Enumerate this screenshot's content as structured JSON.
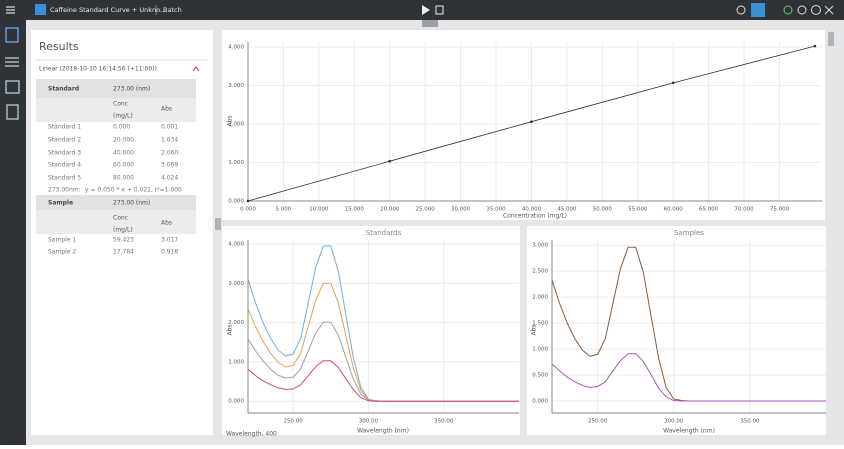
{
  "header": {
    "title": "Caffeine Standard Curve + Unkno...",
    "tab": "Batch"
  },
  "results": {
    "title": "Results",
    "method": "Linear (2018-10-10 16:14:56 (+11:00))",
    "standards": {
      "heading": [
        "Standard",
        "273.00 (nm)"
      ],
      "conc_label": [
        "Conc",
        "(mg/L)"
      ],
      "abs_label": "Abs",
      "rows": [
        [
          "Standard 1",
          "0.000",
          "0.001"
        ],
        [
          "Standard 2",
          "20.000",
          "1.034"
        ],
        [
          "Standard 3",
          "40.000",
          "2.060"
        ],
        [
          "Standard 4",
          "60.000",
          "3.069"
        ],
        [
          "Standard 5",
          "80.000",
          "4.024"
        ]
      ],
      "equation": [
        "273.00nm:",
        "y = 0.050 * x + 0.021, r²=1.000"
      ]
    },
    "samples": {
      "heading": [
        "Sample",
        "273.00 (nm)"
      ],
      "conc_label": [
        "Conc",
        "(mg/L)"
      ],
      "abs_label": "Abs",
      "rows": [
        [
          "Sample 1",
          "59.423",
          "3.017"
        ],
        [
          "Sample 2",
          "17.784",
          "0.918"
        ]
      ]
    }
  },
  "status": "Wavelength, 400",
  "chart_data": [
    {
      "type": "line",
      "markers": true,
      "x_label": "Concentration (mg/L)",
      "y_label": "Abs",
      "grid": true,
      "x": [
        0,
        20000,
        40000,
        60000,
        80000
      ],
      "series": [
        {
          "color": "#333333",
          "values": [
            0.001,
            1.034,
            2.06,
            3.069,
            4.024
          ]
        }
      ],
      "xlim": [
        0,
        81000
      ],
      "ylim": [
        0,
        4.13
      ],
      "xticks": [
        {
          "value": 0,
          "label": "0.000"
        },
        {
          "value": 5000,
          "label": "5.000"
        },
        {
          "value": 10000,
          "label": "10.000"
        },
        {
          "value": 15000,
          "label": "15.000"
        },
        {
          "value": 20000,
          "label": "20.000"
        },
        {
          "value": 25000,
          "label": "25.000"
        },
        {
          "value": 30000,
          "label": "30.000"
        },
        {
          "value": 35000,
          "label": "35.000"
        },
        {
          "value": 40000,
          "label": "40.000"
        },
        {
          "value": 45000,
          "label": "45.000"
        },
        {
          "value": 50000,
          "label": "50.000"
        },
        {
          "value": 55000,
          "label": "55.000"
        },
        {
          "value": 60000,
          "label": "60.000"
        },
        {
          "value": 65000,
          "label": "65.000"
        },
        {
          "value": 70000,
          "label": "70.000"
        },
        {
          "value": 75000,
          "label": "75.000"
        }
      ],
      "yticks": [
        {
          "value": 0,
          "label": "0.000"
        },
        {
          "value": 1,
          "label": "1.000"
        },
        {
          "value": 2,
          "label": "2.000"
        },
        {
          "value": 3,
          "label": "3.000"
        },
        {
          "value": 4,
          "label": "4.000"
        }
      ]
    },
    {
      "type": "line",
      "markers": false,
      "title": "Standards",
      "x_label": "Wavelength (nm)",
      "y_label": "Abs",
      "grid": true,
      "x": [
        220,
        225,
        230,
        235,
        240,
        245,
        250,
        255,
        260,
        265,
        270,
        275,
        280,
        285,
        290,
        295,
        300,
        305,
        310,
        400
      ],
      "series": [
        {
          "color": "#6aaee0",
          "values": [
            3.1,
            2.5,
            2.0,
            1.6,
            1.3,
            1.15,
            1.2,
            1.6,
            2.5,
            3.4,
            3.95,
            3.95,
            3.3,
            2.2,
            1.1,
            0.35,
            0.05,
            0.01,
            0,
            0
          ]
        },
        {
          "color": "#e8a050",
          "values": [
            2.35,
            1.9,
            1.52,
            1.22,
            0.99,
            0.87,
            0.91,
            1.22,
            1.9,
            2.58,
            3.0,
            3.0,
            2.5,
            1.67,
            0.84,
            0.27,
            0.04,
            0.01,
            0,
            0
          ]
        },
        {
          "color": "#a0a0a0",
          "values": [
            1.58,
            1.28,
            1.02,
            0.82,
            0.66,
            0.59,
            0.61,
            0.82,
            1.28,
            1.73,
            2.01,
            2.01,
            1.68,
            1.12,
            0.56,
            0.18,
            0.03,
            0,
            0,
            0
          ]
        },
        {
          "color": "#d84a7a",
          "values": [
            0.81,
            0.65,
            0.52,
            0.42,
            0.34,
            0.3,
            0.31,
            0.42,
            0.65,
            0.88,
            1.03,
            1.03,
            0.86,
            0.57,
            0.29,
            0.09,
            0.01,
            0,
            0,
            0
          ]
        }
      ],
      "xlim": [
        220,
        400
      ],
      "ylim": [
        -0.3,
        4.1
      ],
      "xticks": [
        {
          "value": 250,
          "label": "250.00"
        },
        {
          "value": 300,
          "label": "300.00"
        },
        {
          "value": 350,
          "label": "350.00"
        }
      ],
      "yticks": [
        {
          "value": 0,
          "label": "0.000"
        },
        {
          "value": 1,
          "label": "1.000"
        },
        {
          "value": 2,
          "label": "2.000"
        },
        {
          "value": 3,
          "label": "3.000"
        },
        {
          "value": 4,
          "label": "4.000"
        }
      ]
    },
    {
      "type": "line",
      "markers": false,
      "title": "Samples",
      "x_label": "Wavelength (nm)",
      "y_label": "Abs",
      "grid": true,
      "x": [
        220,
        225,
        230,
        235,
        240,
        245,
        250,
        255,
        260,
        265,
        270,
        275,
        280,
        285,
        290,
        295,
        300,
        305,
        310,
        400
      ],
      "series": [
        {
          "color": "#8a5a3a",
          "values": [
            2.33,
            1.88,
            1.5,
            1.2,
            0.98,
            0.86,
            0.9,
            1.2,
            1.88,
            2.55,
            2.96,
            2.96,
            2.48,
            1.65,
            0.83,
            0.26,
            0.04,
            0.01,
            0,
            0
          ]
        },
        {
          "color": "#b050c0",
          "values": [
            0.71,
            0.58,
            0.46,
            0.37,
            0.3,
            0.26,
            0.28,
            0.37,
            0.58,
            0.78,
            0.91,
            0.91,
            0.76,
            0.51,
            0.25,
            0.08,
            0.01,
            0,
            0,
            0
          ]
        }
      ],
      "xlim": [
        220,
        400
      ],
      "ylim": [
        -0.23,
        3.1
      ],
      "xticks": [
        {
          "value": 250,
          "label": "250.00"
        },
        {
          "value": 300,
          "label": "300.00"
        },
        {
          "value": 350,
          "label": "350.00"
        }
      ],
      "yticks": [
        {
          "value": 0,
          "label": "0.000"
        },
        {
          "value": 0.5,
          "label": "0.500"
        },
        {
          "value": 1,
          "label": "1.000"
        },
        {
          "value": 1.5,
          "label": "1.500"
        },
        {
          "value": 2,
          "label": "2.000"
        },
        {
          "value": 2.5,
          "label": "2.500"
        },
        {
          "value": 3,
          "label": "3.000"
        }
      ]
    }
  ]
}
